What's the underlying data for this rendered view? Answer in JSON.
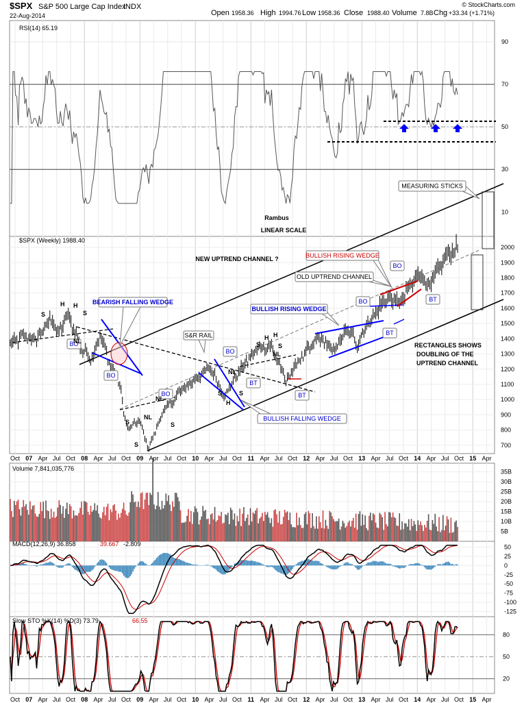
{
  "header": {
    "ticker": "$SPX",
    "name": "S&P 500 Large Cap Index",
    "exchange": "INDX",
    "date": "22-Aug-2014",
    "open_label": "Open",
    "open": "1958.36",
    "high_label": "High",
    "high": "1994.76",
    "low_label": "Low",
    "low": "1958.36",
    "close_label": "Close",
    "close": "1988.40",
    "volume_label": "Volume",
    "volume": "7.8B",
    "chg_label": "Chg",
    "chg": "+33.34 (+1.71%)",
    "watermark": "© StockCharts.com"
  },
  "chart_data": [
    {
      "type": "line",
      "panel": "rsi",
      "title": "RSI(14) 65.19",
      "y_ticks": [
        30,
        50,
        70,
        90
      ],
      "ylim": [
        13,
        100
      ],
      "reference_lines": [
        30,
        50,
        70
      ],
      "color": "#555555"
    },
    {
      "type": "candlestick",
      "panel": "price",
      "title": "$SPX (Weekly) 1988.40",
      "scale": "linear",
      "y_ticks": [
        700,
        800,
        900,
        1000,
        1100,
        1200,
        1300,
        1400,
        1500,
        1600,
        1700,
        1800,
        1900,
        2000
      ],
      "ylim": [
        645,
        2050
      ],
      "x_ticks": [
        "Oct",
        "07",
        "Apr",
        "Jul",
        "Oct",
        "08",
        "Apr",
        "Jul",
        "Oct",
        "09",
        "Apr",
        "Jul",
        "Oct",
        "10",
        "Apr",
        "Jul",
        "Oct",
        "11",
        "Apr",
        "Jul",
        "Oct",
        "12",
        "Apr",
        "Jul",
        "Oct",
        "13",
        "Apr",
        "Jul",
        "Oct",
        "14",
        "Apr",
        "Jul",
        "Oct",
        "15",
        "Apr"
      ],
      "x_bold_ticks": [
        "07",
        "08",
        "09",
        "10",
        "11",
        "12",
        "13",
        "14",
        "15"
      ],
      "weekly_closes_approx": [
        {
          "date": "2006-10",
          "close": 1360
        },
        {
          "date": "2007-01",
          "close": 1420
        },
        {
          "date": "2007-03",
          "close": 1390
        },
        {
          "date": "2007-07",
          "close": 1540
        },
        {
          "date": "2007-08",
          "close": 1420
        },
        {
          "date": "2007-10",
          "close": 1560
        },
        {
          "date": "2008-01",
          "close": 1330
        },
        {
          "date": "2008-03",
          "close": 1270
        },
        {
          "date": "2008-05",
          "close": 1420
        },
        {
          "date": "2008-07",
          "close": 1230
        },
        {
          "date": "2008-09",
          "close": 1100
        },
        {
          "date": "2008-10",
          "close": 880
        },
        {
          "date": "2008-11",
          "close": 800
        },
        {
          "date": "2009-01",
          "close": 870
        },
        {
          "date": "2009-03",
          "close": 680
        },
        {
          "date": "2009-06",
          "close": 920
        },
        {
          "date": "2009-10",
          "close": 1060
        },
        {
          "date": "2010-01",
          "close": 1140
        },
        {
          "date": "2010-04",
          "close": 1210
        },
        {
          "date": "2010-07",
          "close": 1020
        },
        {
          "date": "2010-10",
          "close": 1180
        },
        {
          "date": "2011-02",
          "close": 1340
        },
        {
          "date": "2011-05",
          "close": 1350
        },
        {
          "date": "2011-08",
          "close": 1120
        },
        {
          "date": "2011-10",
          "close": 1230
        },
        {
          "date": "2012-03",
          "close": 1410
        },
        {
          "date": "2012-06",
          "close": 1320
        },
        {
          "date": "2012-09",
          "close": 1460
        },
        {
          "date": "2012-11",
          "close": 1370
        },
        {
          "date": "2013-01",
          "close": 1500
        },
        {
          "date": "2013-05",
          "close": 1660
        },
        {
          "date": "2013-08",
          "close": 1640
        },
        {
          "date": "2013-12",
          "close": 1840
        },
        {
          "date": "2014-02",
          "close": 1740
        },
        {
          "date": "2014-06",
          "close": 1960
        },
        {
          "date": "2014-08",
          "close": 1988
        }
      ]
    },
    {
      "type": "bar",
      "panel": "volume",
      "title": "Volume 7,841,035,776",
      "y_ticks": [
        "5B",
        "10B",
        "15B",
        "20B",
        "25B",
        "30B",
        "35B"
      ],
      "colors": {
        "up": "#555555",
        "down": "#cc4444"
      }
    },
    {
      "type": "line",
      "panel": "macd",
      "title": "MACD(12,26,9) 36.858",
      "signal_label": "39.667",
      "hist_label": "-2.809",
      "y_ticks": [
        50,
        25,
        0,
        -25,
        -50,
        -75,
        -100,
        -125
      ],
      "colors": {
        "macd": "#000000",
        "signal": "#cc0000",
        "hist": "#1f77b4"
      }
    },
    {
      "type": "line",
      "panel": "sto",
      "title": "Slow STO %K(14) %D(3) 73.79,",
      "d_label": "66.55",
      "y_ticks": [
        20,
        50,
        80
      ],
      "reference_lines": [
        20,
        50,
        80
      ],
      "colors": {
        "k": "#000000",
        "d": "#cc0000"
      }
    }
  ],
  "annotations": {
    "rambus": "Rambus",
    "linear_scale": "LINEAR SCALE",
    "measuring_sticks": "MEASURING STICKS",
    "new_uptrend": "NEW UPTREND CHANNEL ?",
    "bullish_rising_wedge_red": "BULLISH RISING WEDGE",
    "old_uptrend": "OLD UPTREND CHANNEL",
    "bearish_falling_wedge": "BEARISH FALLING WEDGE",
    "bullish_rising_wedge_blue": "BULLISH RISING WEDGE",
    "sr_rail": "S&R RAIL",
    "bullish_falling_wedge": "BULLISH FALLING WEDGE",
    "rectangles_1": "RECTANGLES SHOWS",
    "rectangles_2": "DOUBLING OF THE",
    "rectangles_3": "UPTREND CHANNEL",
    "bo": "BO",
    "bt": "BT",
    "h": "H",
    "s": "S",
    "nl": "NL"
  }
}
